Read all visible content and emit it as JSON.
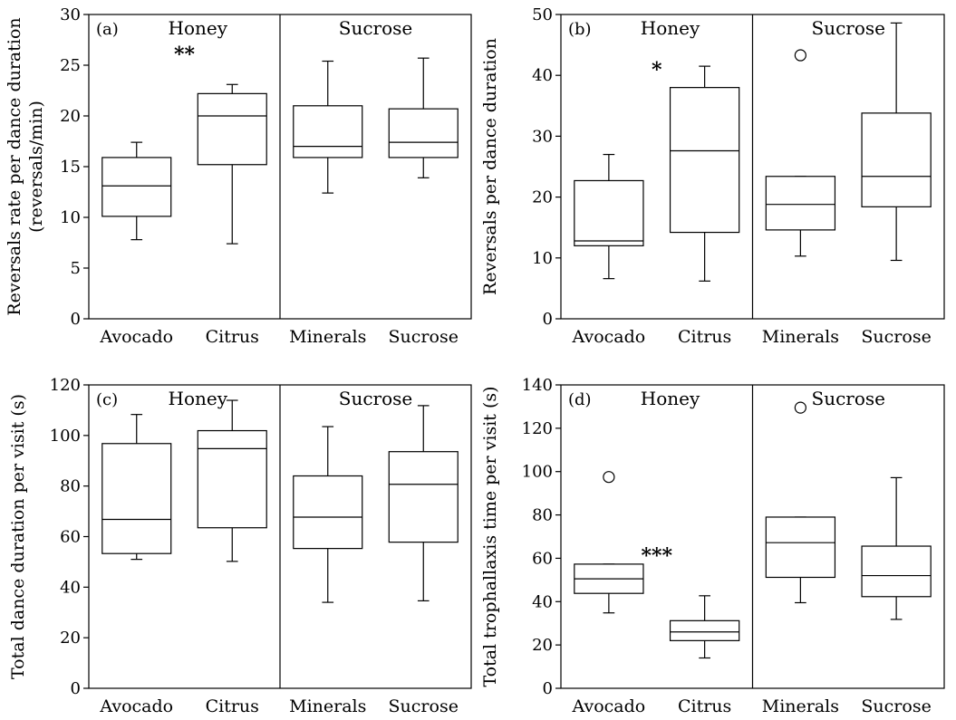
{
  "chart_data": [
    {
      "panel_label": "(a)",
      "type": "box",
      "ylabel_lines": [
        "Reversals rate per dance duration",
        "(reversals/min)"
      ],
      "ylim": [
        0,
        30
      ],
      "yticks": [
        0,
        5,
        10,
        15,
        20,
        25,
        30
      ],
      "groups": [
        {
          "label": "Honey"
        },
        {
          "label": "Sucrose"
        }
      ],
      "categories": [
        "Avocado",
        "Citrus",
        "Minerals",
        "Sucrose"
      ],
      "boxes": [
        {
          "category": "Avocado",
          "group": "Honey",
          "min": 7.8,
          "q1": 10.1,
          "median": 13.1,
          "q3": 15.9,
          "max": 17.4,
          "outliers": []
        },
        {
          "category": "Citrus",
          "group": "Honey",
          "min": 7.4,
          "q1": 15.2,
          "median": 20.0,
          "q3": 22.2,
          "max": 23.1,
          "outliers": []
        },
        {
          "category": "Minerals",
          "group": "Sucrose",
          "min": 12.4,
          "q1": 15.9,
          "median": 17.0,
          "q3": 21.0,
          "max": 25.4,
          "outliers": []
        },
        {
          "category": "Sucrose",
          "group": "Sucrose",
          "min": 13.9,
          "q1": 15.9,
          "median": 17.4,
          "q3": 20.7,
          "max": 25.7,
          "outliers": []
        }
      ],
      "significance": {
        "text": "**",
        "x_category": 0.5,
        "y": 26.1
      }
    },
    {
      "panel_label": "(b)",
      "type": "box",
      "ylabel_lines": [
        "Reversals per dance duration"
      ],
      "ylim": [
        0,
        50
      ],
      "yticks": [
        0,
        10,
        20,
        30,
        40,
        50
      ],
      "groups": [
        {
          "label": "Honey"
        },
        {
          "label": "Sucrose"
        }
      ],
      "categories": [
        "Avocado",
        "Citrus",
        "Minerals",
        "Sucrose"
      ],
      "boxes": [
        {
          "category": "Avocado",
          "group": "Honey",
          "min": 6.6,
          "q1": 12.0,
          "median": 12.8,
          "q3": 22.7,
          "max": 27.0,
          "outliers": []
        },
        {
          "category": "Citrus",
          "group": "Honey",
          "min": 6.2,
          "q1": 14.2,
          "median": 27.6,
          "q3": 38.0,
          "max": 41.5,
          "outliers": []
        },
        {
          "category": "Minerals",
          "group": "Sucrose",
          "min": 10.3,
          "q1": 14.6,
          "median": 18.8,
          "q3": 23.4,
          "max": 23.4,
          "outliers": [
            43.3
          ]
        },
        {
          "category": "Sucrose",
          "group": "Sucrose",
          "min": 9.6,
          "q1": 18.4,
          "median": 23.4,
          "q3": 33.8,
          "max": 48.6,
          "outliers": []
        }
      ],
      "significance": {
        "text": "*",
        "x_category": 0.5,
        "y": 41.0
      }
    },
    {
      "panel_label": "(c)",
      "type": "box",
      "ylabel_lines": [
        "Total dance duration per visit (s)"
      ],
      "ylim": [
        0,
        120
      ],
      "yticks": [
        0,
        20,
        40,
        60,
        80,
        100,
        120
      ],
      "groups": [
        {
          "label": "Honey"
        },
        {
          "label": "Sucrose"
        }
      ],
      "categories": [
        "Avocado",
        "Citrus",
        "Minerals",
        "Sucrose"
      ],
      "boxes": [
        {
          "category": "Avocado",
          "group": "Honey",
          "min": 51.0,
          "q1": 53.3,
          "median": 66.8,
          "q3": 96.8,
          "max": 108.3,
          "outliers": []
        },
        {
          "category": "Citrus",
          "group": "Honey",
          "min": 50.2,
          "q1": 63.5,
          "median": 94.8,
          "q3": 101.9,
          "max": 113.9,
          "outliers": []
        },
        {
          "category": "Minerals",
          "group": "Sucrose",
          "min": 34.0,
          "q1": 55.3,
          "median": 67.7,
          "q3": 84.0,
          "max": 103.5,
          "outliers": []
        },
        {
          "category": "Sucrose",
          "group": "Sucrose",
          "min": 34.6,
          "q1": 57.8,
          "median": 80.7,
          "q3": 93.6,
          "max": 111.8,
          "outliers": []
        }
      ],
      "significance": null
    },
    {
      "panel_label": "(d)",
      "type": "box",
      "ylabel_lines": [
        "Total trophallaxis time per visit (s)"
      ],
      "ylim": [
        0,
        140
      ],
      "yticks": [
        0,
        20,
        40,
        60,
        80,
        100,
        120,
        140
      ],
      "groups": [
        {
          "label": "Honey"
        },
        {
          "label": "Sucrose"
        }
      ],
      "categories": [
        "Avocado",
        "Citrus",
        "Minerals",
        "Sucrose"
      ],
      "boxes": [
        {
          "category": "Avocado",
          "group": "Honey",
          "min": 34.8,
          "q1": 43.8,
          "median": 50.5,
          "q3": 57.3,
          "max": 57.3,
          "outliers": [
            97.5
          ]
        },
        {
          "category": "Citrus",
          "group": "Honey",
          "min": 14.0,
          "q1": 22.0,
          "median": 26.0,
          "q3": 31.2,
          "max": 42.7,
          "outliers": []
        },
        {
          "category": "Minerals",
          "group": "Sucrose",
          "min": 39.5,
          "q1": 51.2,
          "median": 67.2,
          "q3": 79.0,
          "max": 79.0,
          "outliers": [
            129.5
          ]
        },
        {
          "category": "Sucrose",
          "group": "Sucrose",
          "min": 31.8,
          "q1": 42.3,
          "median": 52.0,
          "q3": 65.6,
          "max": 97.2,
          "outliers": []
        }
      ],
      "significance": {
        "text": "***",
        "x_category": 0.5,
        "y": 61.5
      }
    }
  ]
}
